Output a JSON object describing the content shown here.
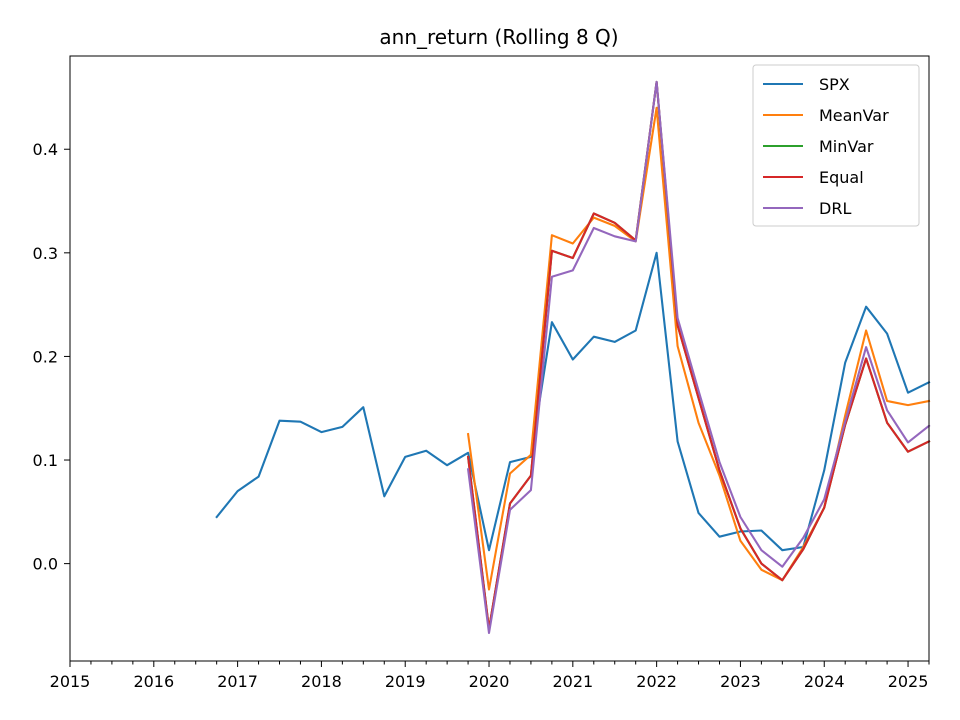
{
  "chart_data": {
    "type": "line",
    "title": "ann_return (Rolling 8 Q)",
    "xlabel": "",
    "ylabel": "",
    "xlim": [
      "2015-01-01",
      "2025-04-01"
    ],
    "ylim": [
      -0.094,
      0.49
    ],
    "x_ticks": [
      "2015",
      "2016",
      "2017",
      "2018",
      "2019",
      "2020",
      "2021",
      "2022",
      "2023",
      "2024",
      "2025"
    ],
    "y_ticks": [
      0.0,
      0.1,
      0.2,
      0.3,
      0.4
    ],
    "y_tick_labels": [
      "0.0",
      "0.1",
      "0.2",
      "0.3",
      "0.4"
    ],
    "grid": false,
    "legend": "top-right",
    "series": [
      {
        "name": "SPX",
        "color": "#1f77b4",
        "points": [
          [
            "2016-10-01",
            0.045
          ],
          [
            "2017-01-01",
            0.07
          ],
          [
            "2017-04-01",
            0.084
          ],
          [
            "2017-07-01",
            0.138
          ],
          [
            "2017-10-01",
            0.137
          ],
          [
            "2018-01-01",
            0.127
          ],
          [
            "2018-04-01",
            0.132
          ],
          [
            "2018-07-01",
            0.151
          ],
          [
            "2018-10-01",
            0.065
          ],
          [
            "2019-01-01",
            0.103
          ],
          [
            "2019-04-01",
            0.109
          ],
          [
            "2019-07-01",
            0.095
          ],
          [
            "2019-10-01",
            0.107
          ],
          [
            "2020-01-01",
            0.013
          ],
          [
            "2020-04-01",
            0.098
          ],
          [
            "2020-07-01",
            0.103
          ],
          [
            "2020-10-01",
            0.233
          ],
          [
            "2021-01-01",
            0.197
          ],
          [
            "2021-04-01",
            0.219
          ],
          [
            "2021-07-01",
            0.214
          ],
          [
            "2021-10-01",
            0.225
          ],
          [
            "2022-01-01",
            0.3
          ],
          [
            "2022-04-01",
            0.118
          ],
          [
            "2022-07-01",
            0.049
          ],
          [
            "2022-10-01",
            0.026
          ],
          [
            "2023-01-01",
            0.031
          ],
          [
            "2023-04-01",
            0.032
          ],
          [
            "2023-07-01",
            0.013
          ],
          [
            "2023-10-01",
            0.016
          ],
          [
            "2024-01-01",
            0.09
          ],
          [
            "2024-04-01",
            0.194
          ],
          [
            "2024-07-01",
            0.248
          ],
          [
            "2024-10-01",
            0.222
          ],
          [
            "2025-01-01",
            0.165
          ],
          [
            "2025-04-01",
            0.175
          ]
        ]
      },
      {
        "name": "MeanVar",
        "color": "#ff7f0e",
        "points": [
          [
            "2019-10-01",
            0.125
          ],
          [
            "2020-01-01",
            -0.025
          ],
          [
            "2020-04-01",
            0.087
          ],
          [
            "2020-07-01",
            0.105
          ],
          [
            "2020-10-01",
            0.317
          ],
          [
            "2021-01-01",
            0.309
          ],
          [
            "2021-04-01",
            0.334
          ],
          [
            "2021-07-01",
            0.326
          ],
          [
            "2021-10-01",
            0.311
          ],
          [
            "2022-01-01",
            0.44
          ],
          [
            "2022-04-01",
            0.21
          ],
          [
            "2022-07-01",
            0.136
          ],
          [
            "2022-10-01",
            0.085
          ],
          [
            "2023-01-01",
            0.022
          ],
          [
            "2023-04-01",
            -0.006
          ],
          [
            "2023-07-01",
            -0.016
          ],
          [
            "2023-10-01",
            0.016
          ],
          [
            "2024-01-01",
            0.054
          ],
          [
            "2024-04-01",
            0.143
          ],
          [
            "2024-07-01",
            0.225
          ],
          [
            "2024-10-01",
            0.157
          ],
          [
            "2025-01-01",
            0.153
          ],
          [
            "2025-04-01",
            0.157
          ]
        ]
      },
      {
        "name": "MinVar",
        "color": "#2ca02c",
        "points": [
          [
            "2019-10-01",
            0.103
          ],
          [
            "2020-01-01",
            -0.063
          ],
          [
            "2020-04-01",
            0.058
          ],
          [
            "2020-07-01",
            0.085
          ],
          [
            "2020-10-01",
            0.302
          ],
          [
            "2021-01-01",
            0.295
          ],
          [
            "2021-04-01",
            0.338
          ],
          [
            "2021-07-01",
            0.329
          ],
          [
            "2021-10-01",
            0.312
          ],
          [
            "2022-01-01",
            0.465
          ],
          [
            "2022-04-01",
            0.23
          ],
          [
            "2022-07-01",
            0.16
          ],
          [
            "2022-10-01",
            0.09
          ],
          [
            "2023-01-01",
            0.034
          ],
          [
            "2023-04-01",
            0.0
          ],
          [
            "2023-07-01",
            -0.016
          ],
          [
            "2023-10-01",
            0.014
          ],
          [
            "2024-01-01",
            0.054
          ],
          [
            "2024-04-01",
            0.134
          ],
          [
            "2024-07-01",
            0.198
          ],
          [
            "2024-10-01",
            0.136
          ],
          [
            "2025-01-01",
            0.108
          ],
          [
            "2025-04-01",
            0.118
          ]
        ]
      },
      {
        "name": "Equal",
        "color": "#d62728",
        "points": [
          [
            "2019-10-01",
            0.103
          ],
          [
            "2020-01-01",
            -0.063
          ],
          [
            "2020-04-01",
            0.058
          ],
          [
            "2020-07-01",
            0.085
          ],
          [
            "2020-10-01",
            0.302
          ],
          [
            "2021-01-01",
            0.295
          ],
          [
            "2021-04-01",
            0.338
          ],
          [
            "2021-07-01",
            0.329
          ],
          [
            "2021-10-01",
            0.312
          ],
          [
            "2022-01-01",
            0.465
          ],
          [
            "2022-04-01",
            0.23
          ],
          [
            "2022-07-01",
            0.16
          ],
          [
            "2022-10-01",
            0.09
          ],
          [
            "2023-01-01",
            0.034
          ],
          [
            "2023-04-01",
            0.0
          ],
          [
            "2023-07-01",
            -0.016
          ],
          [
            "2023-10-01",
            0.014
          ],
          [
            "2024-01-01",
            0.054
          ],
          [
            "2024-04-01",
            0.134
          ],
          [
            "2024-07-01",
            0.198
          ],
          [
            "2024-10-01",
            0.136
          ],
          [
            "2025-01-01",
            0.108
          ],
          [
            "2025-04-01",
            0.118
          ]
        ]
      },
      {
        "name": "DRL",
        "color": "#9467bd",
        "points": [
          [
            "2019-10-01",
            0.091
          ],
          [
            "2020-01-01",
            -0.067
          ],
          [
            "2020-04-01",
            0.052
          ],
          [
            "2020-07-01",
            0.071
          ],
          [
            "2020-10-01",
            0.277
          ],
          [
            "2021-01-01",
            0.283
          ],
          [
            "2021-04-01",
            0.324
          ],
          [
            "2021-07-01",
            0.316
          ],
          [
            "2021-10-01",
            0.311
          ],
          [
            "2022-01-01",
            0.465
          ],
          [
            "2022-04-01",
            0.237
          ],
          [
            "2022-07-01",
            0.167
          ],
          [
            "2022-10-01",
            0.098
          ],
          [
            "2023-01-01",
            0.045
          ],
          [
            "2023-04-01",
            0.013
          ],
          [
            "2023-07-01",
            -0.003
          ],
          [
            "2023-10-01",
            0.025
          ],
          [
            "2024-01-01",
            0.062
          ],
          [
            "2024-04-01",
            0.137
          ],
          [
            "2024-07-01",
            0.209
          ],
          [
            "2024-10-01",
            0.148
          ],
          [
            "2025-01-01",
            0.117
          ],
          [
            "2025-04-01",
            0.133
          ]
        ]
      }
    ]
  }
}
